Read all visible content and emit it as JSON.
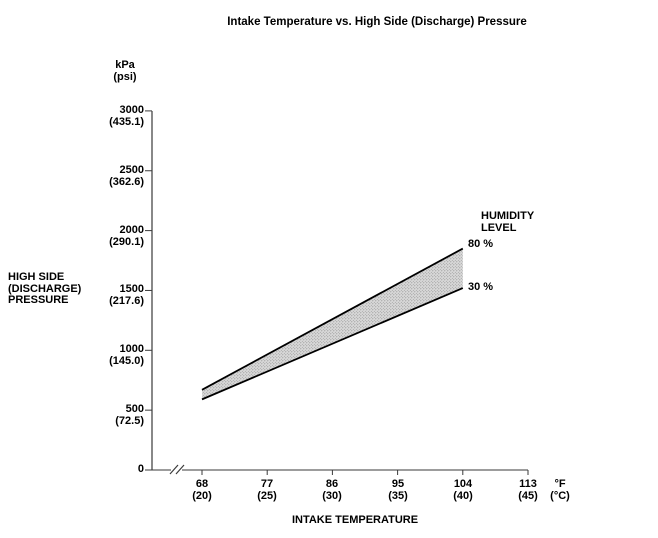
{
  "title": "Intake Temperature vs. High Side (Discharge) Pressure",
  "colors": {
    "background": "#ffffff",
    "text": "#000000",
    "axis": "#3a3a3a",
    "line": "#000000",
    "band_fill": "#d8d8d8",
    "band_dot": "#8e8e8e"
  },
  "y_axis": {
    "unit_label": "kPa\n(psi)",
    "title": "HIGH SIDE\n(DISCHARGE)\nPRESSURE"
  },
  "x_axis": {
    "title": "INTAKE TEMPERATURE",
    "unit_label": "°F\n(°C)"
  },
  "legend": {
    "heading": "HUMIDITY\nLEVEL",
    "series_labels": [
      "80 %",
      "30 %"
    ]
  },
  "chart_data": {
    "type": "area",
    "title": "Intake Temperature vs. High Side (Discharge) Pressure",
    "xlabel": "INTAKE TEMPERATURE",
    "ylabel": "HIGH SIDE (DISCHARGE) PRESSURE",
    "x_units": [
      "°F",
      "(°C)"
    ],
    "y_units": [
      "kPa",
      "(psi)"
    ],
    "x_ticks": [
      {
        "primary": "68",
        "secondary": "(20)"
      },
      {
        "primary": "77",
        "secondary": "(25)"
      },
      {
        "primary": "86",
        "secondary": "(30)"
      },
      {
        "primary": "95",
        "secondary": "(35)"
      },
      {
        "primary": "104",
        "secondary": "(40)"
      },
      {
        "primary": "113",
        "secondary": "(45)"
      }
    ],
    "y_ticks": [
      {
        "primary": "3000",
        "secondary": "(435.1)"
      },
      {
        "primary": "2500",
        "secondary": "(362.6)"
      },
      {
        "primary": "2000",
        "secondary": "(290.1)"
      },
      {
        "primary": "1500",
        "secondary": "(217.6)"
      },
      {
        "primary": "1000",
        "secondary": "(145.0)"
      },
      {
        "primary": "500",
        "secondary": "(72.5)"
      },
      {
        "primary": "0",
        "secondary": ""
      }
    ],
    "x_tick_values_f": [
      68,
      77,
      86,
      95,
      104,
      113
    ],
    "y_tick_values_kpa": [
      3000,
      2500,
      2000,
      1500,
      1000,
      500,
      0
    ],
    "series": [
      {
        "name": "80 %",
        "points_f_kpa": [
          [
            68,
            670
          ],
          [
            104,
            1850
          ]
        ]
      },
      {
        "name": "30 %",
        "points_f_kpa": [
          [
            68,
            590
          ],
          [
            104,
            1520
          ]
        ]
      }
    ],
    "band_between_series": true,
    "band_style": "stippled gray",
    "axis_break_on_x": true,
    "xlim_f": [
      68,
      113
    ],
    "ylim_kpa": [
      0,
      3000
    ],
    "grid": false,
    "legend_position": "right-of-band-end"
  }
}
